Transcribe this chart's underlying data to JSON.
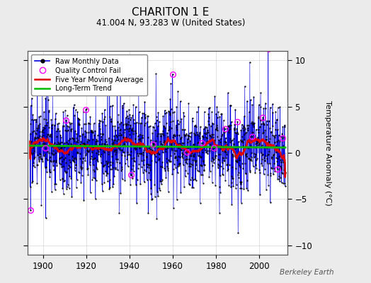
{
  "title": "CHARITON 1 E",
  "subtitle": "41.004 N, 93.283 W (United States)",
  "ylabel": "Temperature Anomaly (°C)",
  "watermark": "Berkeley Earth",
  "xlim": [
    1893,
    2013
  ],
  "ylim": [
    -11,
    11
  ],
  "yticks": [
    -10,
    -5,
    0,
    5,
    10
  ],
  "xticks": [
    1900,
    1920,
    1940,
    1960,
    1980,
    2000
  ],
  "bg_color": "#ebebeb",
  "plot_bg_color": "#ffffff",
  "raw_line_color": "#0000dd",
  "raw_fill_color": "#7777ee",
  "ma_color": "#dd0000",
  "trend_color": "#00bb00",
  "qc_color": "#ff00ff",
  "seed": 17,
  "start_year": 1894,
  "end_year": 2012,
  "n_months": 1416,
  "base_mean": 0.6
}
